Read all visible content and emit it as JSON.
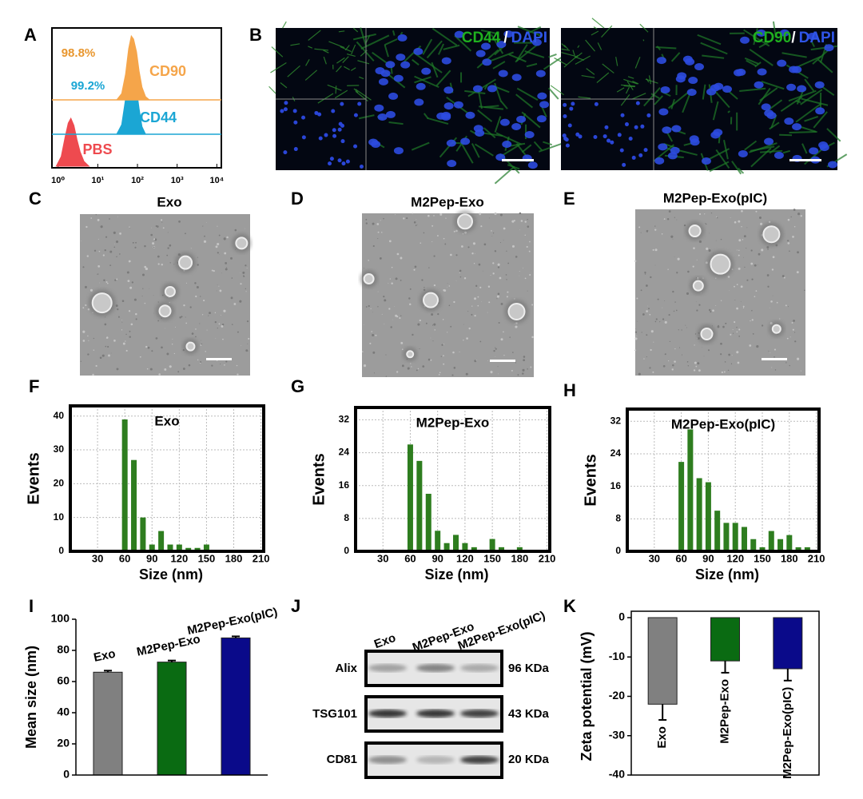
{
  "panel_labels": [
    "A",
    "B",
    "C",
    "D",
    "E",
    "F",
    "G",
    "H",
    "I",
    "J",
    "K"
  ],
  "fluorescence": [
    {
      "stain": "CD44",
      "separator": "/",
      "counterstain": "DAPI"
    },
    {
      "stain": "CD90",
      "separator": "/",
      "counterstain": "DAPI"
    }
  ],
  "tem": [
    {
      "title": "Exo"
    },
    {
      "title": "M2Pep-Exo"
    },
    {
      "title": "M2Pep-Exo(pIC)"
    }
  ],
  "blot": {
    "lanes": [
      "Exo",
      "M2Pep-Exo",
      "M2Pep-Exo(pIC)"
    ],
    "rows": [
      {
        "protein": "Alix",
        "size": "96 KDa"
      },
      {
        "protein": "TSG101",
        "size": "43 KDa"
      },
      {
        "protein": "CD81",
        "size": "20 KDa"
      }
    ]
  },
  "chart_data": [
    {
      "type": "flow",
      "log_x": true,
      "xlim": [
        0.7,
        13000
      ],
      "ylim": [
        0,
        100
      ],
      "xticks": [
        {
          "value": 1,
          "label": "10⁰"
        },
        {
          "value": 10,
          "label": "10¹"
        },
        {
          "value": 100,
          "label": "10²"
        },
        {
          "value": 1000,
          "label": "10³"
        },
        {
          "value": 10000,
          "label": "10⁴"
        }
      ],
      "series": [
        {
          "name": "PBS",
          "color": "#ee4a4f",
          "x": [
            0.9,
            1.2,
            1.5,
            1.8,
            2.1,
            2.5,
            3,
            3.6,
            4.5,
            6
          ],
          "values": [
            0,
            20,
            60,
            90,
            100,
            85,
            55,
            30,
            10,
            0
          ]
        },
        {
          "name": "CD44",
          "color": "#1ba6d4",
          "x": [
            30,
            40,
            50,
            60,
            70,
            80,
            95,
            110,
            130,
            160
          ],
          "values": [
            0,
            15,
            55,
            90,
            100,
            95,
            70,
            40,
            12,
            0
          ]
        },
        {
          "name": "CD90",
          "color": "#f5a54a",
          "x": [
            30,
            40,
            50,
            60,
            70,
            80,
            95,
            110,
            130,
            160,
            200
          ],
          "values": [
            0,
            10,
            40,
            80,
            100,
            95,
            75,
            45,
            20,
            5,
            0
          ]
        }
      ],
      "annotations": [
        {
          "text": "98.8%",
          "color": "#e8962e"
        },
        {
          "text": "99.2%",
          "color": "#1ba6d4"
        }
      ]
    },
    {
      "type": "bar",
      "title": "Exo",
      "xlabel": "Size (nm)",
      "ylabel": "Events",
      "color": "#2e7d1f",
      "grid": true,
      "xlim": [
        0,
        213
      ],
      "ylim": [
        0,
        43
      ],
      "xticks": [
        30,
        60,
        90,
        120,
        150,
        180,
        210
      ],
      "yticks": [
        0,
        10,
        20,
        30,
        40
      ],
      "x": [
        60,
        70,
        80,
        90,
        100,
        110,
        120,
        130,
        140,
        150
      ],
      "values": [
        39,
        27,
        10,
        2,
        6,
        2,
        2,
        1,
        1,
        2
      ]
    },
    {
      "type": "bar",
      "title": "M2Pep-Exo",
      "xlabel": "Size (nm)",
      "ylabel": "Events",
      "color": "#2e7d1f",
      "grid": true,
      "xlim": [
        0,
        213
      ],
      "ylim": [
        0,
        35
      ],
      "xticks": [
        30,
        60,
        90,
        120,
        150,
        180,
        210
      ],
      "yticks": [
        0,
        8,
        16,
        24,
        32
      ],
      "x": [
        60,
        70,
        80,
        90,
        100,
        110,
        120,
        130,
        150,
        160,
        180
      ],
      "values": [
        26,
        22,
        14,
        5,
        2,
        4,
        2,
        1,
        3,
        1,
        1
      ]
    },
    {
      "type": "bar",
      "title": "M2Pep-Exo(pIC)",
      "xlabel": "Size (nm)",
      "ylabel": "Events",
      "color": "#2e7d1f",
      "grid": true,
      "xlim": [
        0,
        213
      ],
      "ylim": [
        0,
        35
      ],
      "xticks": [
        30,
        60,
        90,
        120,
        150,
        180,
        210
      ],
      "yticks": [
        0,
        8,
        16,
        24,
        32
      ],
      "x": [
        60,
        70,
        80,
        90,
        100,
        110,
        120,
        130,
        140,
        150,
        160,
        170,
        180,
        190,
        200
      ],
      "values": [
        22,
        30,
        18,
        17,
        10,
        7,
        7,
        6,
        3,
        1,
        5,
        3,
        4,
        1,
        1
      ]
    },
    {
      "type": "bar",
      "ylabel": "Mean size (nm)",
      "categories": [
        "Exo",
        "M2Pep-Exo",
        "M2Pep-Exo(pIC)"
      ],
      "values": [
        66,
        72.5,
        88
      ],
      "errors": [
        1,
        1,
        1
      ],
      "colors": [
        "#808080",
        "#0a6b12",
        "#0a0a8a"
      ],
      "ylim": [
        0,
        100
      ],
      "yticks": [
        0,
        20,
        40,
        60,
        80,
        100
      ]
    },
    {
      "type": "bar",
      "ylabel": "Zeta potential (mV)",
      "categories": [
        "Exo",
        "M2Pep-Exo",
        "M2Pep-Exo(pIC)"
      ],
      "values": [
        -22,
        -11,
        -13
      ],
      "errors": [
        4,
        3,
        3
      ],
      "colors": [
        "#808080",
        "#0a6b12",
        "#0a0a8a"
      ],
      "ylim": [
        -40,
        0
      ],
      "yticks": [
        0,
        -10,
        -20,
        -30,
        -40
      ]
    }
  ]
}
